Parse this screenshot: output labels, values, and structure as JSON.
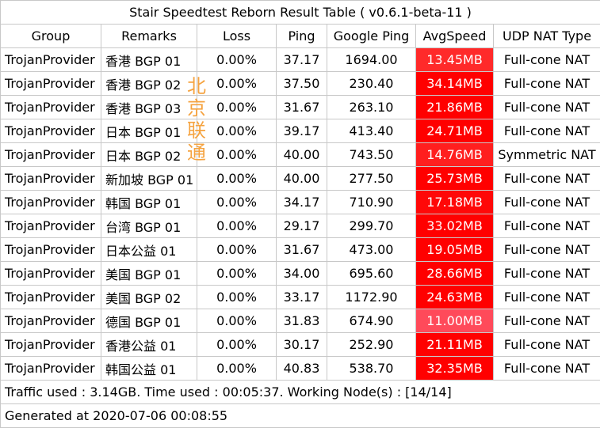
{
  "title": "Stair Speedtest Reborn Result Table ( v0.6.1-beta-11 )",
  "headers": [
    "Group",
    "Remarks",
    "Loss",
    "Ping",
    "Google Ping",
    "AvgSpeed",
    "UDP NAT Type"
  ],
  "rows": [
    {
      "group": "TrojanProvider",
      "remarks": "香港 BGP 01",
      "loss": "0.00%",
      "ping": "37.17",
      "google_ping": "1694.00",
      "avg_speed": "13.45MB",
      "speed_color": "#ff2a2a",
      "nat": "Full-cone NAT"
    },
    {
      "group": "TrojanProvider",
      "remarks": "香港  BGP 02",
      "loss": "0.00%",
      "ping": "37.50",
      "google_ping": "230.40",
      "avg_speed": "34.14MB",
      "speed_color": "#ff0000",
      "nat": "Full-cone NAT"
    },
    {
      "group": "TrojanProvider",
      "remarks": "香港  BGP 03",
      "loss": "0.00%",
      "ping": "31.67",
      "google_ping": "263.10",
      "avg_speed": "21.86MB",
      "speed_color": "#ff0000",
      "nat": "Full-cone NAT"
    },
    {
      "group": "TrojanProvider",
      "remarks": "日本 BGP 01",
      "loss": "0.00%",
      "ping": "39.17",
      "google_ping": "413.40",
      "avg_speed": "24.71MB",
      "speed_color": "#ff0000",
      "nat": "Full-cone NAT"
    },
    {
      "group": "TrojanProvider",
      "remarks": "日本 BGP 02",
      "loss": "0.00%",
      "ping": "40.00",
      "google_ping": "743.50",
      "avg_speed": "14.76MB",
      "speed_color": "#ff1f1f",
      "nat": "Symmetric NAT"
    },
    {
      "group": "TrojanProvider",
      "remarks": "新加坡 BGP 01",
      "loss": "0.00%",
      "ping": "40.00",
      "google_ping": "277.50",
      "avg_speed": "25.73MB",
      "speed_color": "#ff0000",
      "nat": "Full-cone NAT"
    },
    {
      "group": "TrojanProvider",
      "remarks": "韩国 BGP 01",
      "loss": "0.00%",
      "ping": "34.17",
      "google_ping": "710.90",
      "avg_speed": "17.18MB",
      "speed_color": "#ff0808",
      "nat": "Full-cone NAT"
    },
    {
      "group": "TrojanProvider",
      "remarks": "台湾 BGP 01",
      "loss": "0.00%",
      "ping": "29.17",
      "google_ping": "299.70",
      "avg_speed": "33.02MB",
      "speed_color": "#ff0000",
      "nat": "Full-cone NAT"
    },
    {
      "group": "TrojanProvider",
      "remarks": "日本公益 01",
      "loss": "0.00%",
      "ping": "31.67",
      "google_ping": "473.00",
      "avg_speed": "19.05MB",
      "speed_color": "#ff0000",
      "nat": "Full-cone NAT"
    },
    {
      "group": "TrojanProvider",
      "remarks": "美国 BGP 01",
      "loss": "0.00%",
      "ping": "34.00",
      "google_ping": "695.60",
      "avg_speed": "28.66MB",
      "speed_color": "#ff0000",
      "nat": "Full-cone NAT"
    },
    {
      "group": "TrojanProvider",
      "remarks": "美国 BGP 02",
      "loss": "0.00%",
      "ping": "33.17",
      "google_ping": "1172.90",
      "avg_speed": "24.63MB",
      "speed_color": "#ff0000",
      "nat": "Full-cone NAT"
    },
    {
      "group": "TrojanProvider",
      "remarks": "德国 BGP 01",
      "loss": "0.00%",
      "ping": "31.83",
      "google_ping": "674.90",
      "avg_speed": "11.00MB",
      "speed_color": "#ff4a5a",
      "nat": "Full-cone NAT"
    },
    {
      "group": "TrojanProvider",
      "remarks": "香港公益 01",
      "loss": "0.00%",
      "ping": "30.17",
      "google_ping": "252.90",
      "avg_speed": "21.11MB",
      "speed_color": "#ff0000",
      "nat": "Full-cone NAT"
    },
    {
      "group": "TrojanProvider",
      "remarks": "韩国公益 01",
      "loss": "0.00%",
      "ping": "40.83",
      "google_ping": "538.70",
      "avg_speed": "32.35MB",
      "speed_color": "#ff0000",
      "nat": "Full-cone NAT"
    }
  ],
  "traffic_line": "Traffic used : 3.14GB. Time used : 00:05:37. Working Node(s) : [14/14]",
  "generated_line": "Generated at 2020-07-06 00:08:55",
  "watermark": [
    "北",
    "京",
    "联",
    "通"
  ]
}
